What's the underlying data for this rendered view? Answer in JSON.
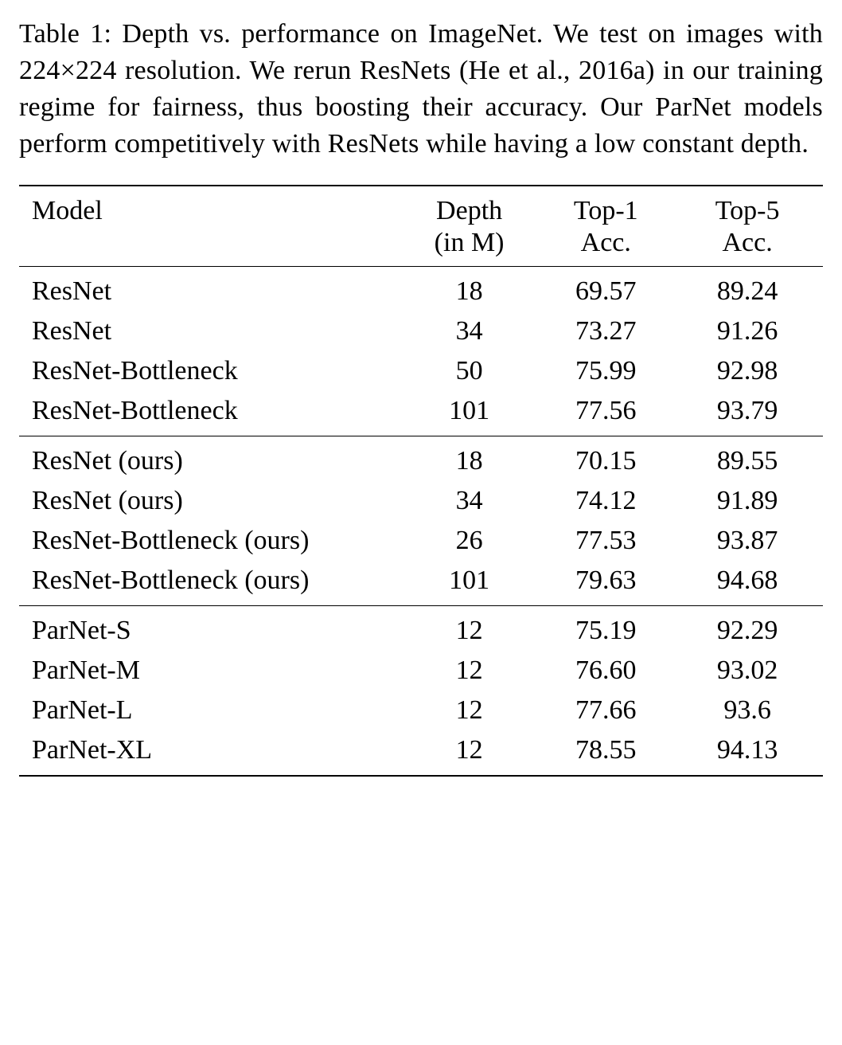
{
  "caption": "Table 1: Depth vs. performance on ImageNet. We test on images with 224×224 resolution. We rerun ResNets (He et al., 2016a) in our training regime for fairness, thus boosting their accuracy. Our ParNet models perform competitively with ResNets while having a low constant depth.",
  "table": {
    "columns": [
      {
        "line1": "Model",
        "line2": ""
      },
      {
        "line1": "Depth",
        "line2": "(in M)"
      },
      {
        "line1": "Top-1",
        "line2": "Acc."
      },
      {
        "line1": "Top-5",
        "line2": "Acc."
      }
    ],
    "groups": [
      {
        "rows": [
          {
            "model": "ResNet",
            "depth": "18",
            "top1": "69.57",
            "top5": "89.24"
          },
          {
            "model": "ResNet",
            "depth": "34",
            "top1": "73.27",
            "top5": "91.26"
          },
          {
            "model": "ResNet-Bottleneck",
            "depth": "50",
            "top1": "75.99",
            "top5": "92.98"
          },
          {
            "model": "ResNet-Bottleneck",
            "depth": "101",
            "top1": "77.56",
            "top5": "93.79"
          }
        ]
      },
      {
        "rows": [
          {
            "model": "ResNet (ours)",
            "depth": "18",
            "top1": "70.15",
            "top5": "89.55"
          },
          {
            "model": "ResNet (ours)",
            "depth": "34",
            "top1": "74.12",
            "top5": "91.89"
          },
          {
            "model": "ResNet-Bottleneck (ours)",
            "depth": "26",
            "top1": "77.53",
            "top5": "93.87"
          },
          {
            "model": "ResNet-Bottleneck (ours)",
            "depth": "101",
            "top1": "79.63",
            "top5": "94.68"
          }
        ]
      },
      {
        "rows": [
          {
            "model": "ParNet-S",
            "depth": "12",
            "top1": "75.19",
            "top5": "92.29"
          },
          {
            "model": "ParNet-M",
            "depth": "12",
            "top1": "76.60",
            "top5": "93.02"
          },
          {
            "model": "ParNet-L",
            "depth": "12",
            "top1": "77.66",
            "top5": "93.6"
          },
          {
            "model": "ParNet-XL",
            "depth": "12",
            "top1": "78.55",
            "top5": "94.13"
          }
        ]
      }
    ]
  },
  "styling": {
    "font_family": "Times New Roman",
    "caption_fontsize": 34,
    "table_fontsize": 34,
    "background_color": "#ffffff",
    "text_color": "#000000",
    "rule_color": "#000000",
    "top_rule_width": 2,
    "mid_rule_width": 1.5
  }
}
